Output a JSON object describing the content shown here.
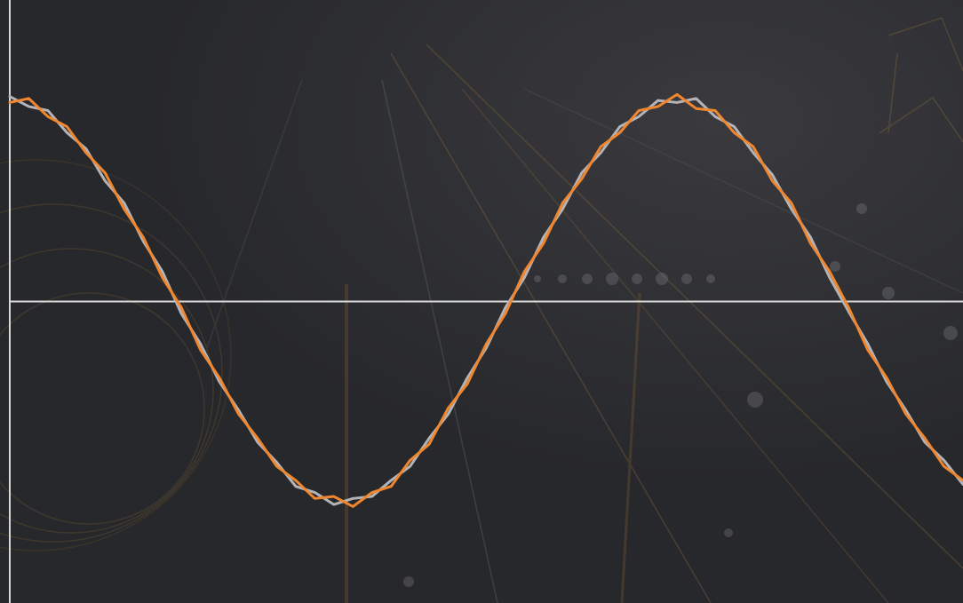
{
  "chart_data": {
    "type": "line",
    "x": [
      0,
      0.2,
      0.4,
      0.6,
      0.8,
      1,
      1.2,
      1.4,
      1.6,
      1.8,
      2,
      2.2,
      2.4,
      2.6,
      2.8,
      3,
      3.2,
      3.4,
      3.6,
      3.8,
      4,
      4.2,
      4.4,
      4.6,
      4.8,
      5,
      5.2,
      5.4,
      5.6,
      5.8,
      6,
      6.2,
      6.4,
      6.6,
      6.8,
      7,
      7.2,
      7.4,
      7.6,
      7.8,
      8,
      8.2,
      8.4,
      8.6,
      8.8,
      9,
      9.2,
      9.4,
      9.6,
      9.8,
      10
    ],
    "series": [
      {
        "color": "#b4b4b8",
        "values": [
          1.02,
          0.97,
          0.95,
          0.84,
          0.76,
          0.6,
          0.49,
          0.3,
          0.15,
          -0.06,
          -0.21,
          -0.4,
          -0.54,
          -0.7,
          -0.8,
          -0.92,
          -0.95,
          -1.01,
          -0.98,
          -0.97,
          -0.89,
          -0.82,
          -0.68,
          -0.56,
          -0.38,
          -0.23,
          -0.03,
          0.12,
          0.32,
          0.46,
          0.64,
          0.74,
          0.87,
          0.92,
          1.0,
          0.99,
          1.01,
          0.92,
          0.87,
          0.74,
          0.63,
          0.46,
          0.32,
          0.12,
          -0.05,
          -0.21,
          -0.4,
          -0.54,
          -0.7,
          -0.79,
          -0.91
        ]
      },
      {
        "color": "#f0862e",
        "values": [
          0.99,
          1.01,
          0.92,
          0.87,
          0.74,
          0.64,
          0.46,
          0.32,
          0.12,
          -0.03,
          -0.24,
          -0.38,
          -0.56,
          -0.68,
          -0.82,
          -0.89,
          -0.98,
          -0.97,
          -1.02,
          -0.95,
          -0.92,
          -0.79,
          -0.71,
          -0.53,
          -0.41,
          -0.21,
          -0.06,
          0.15,
          0.29,
          0.49,
          0.61,
          0.77,
          0.84,
          0.95,
          0.97,
          1.03,
          0.96,
          0.95,
          0.84,
          0.77,
          0.6,
          0.49,
          0.29,
          0.15,
          -0.03,
          -0.24,
          -0.38,
          -0.56,
          -0.68,
          -0.82,
          -0.89
        ]
      }
    ],
    "xlim": [
      0,
      10
    ],
    "ylim": [
      -1.5,
      1.5
    ]
  }
}
